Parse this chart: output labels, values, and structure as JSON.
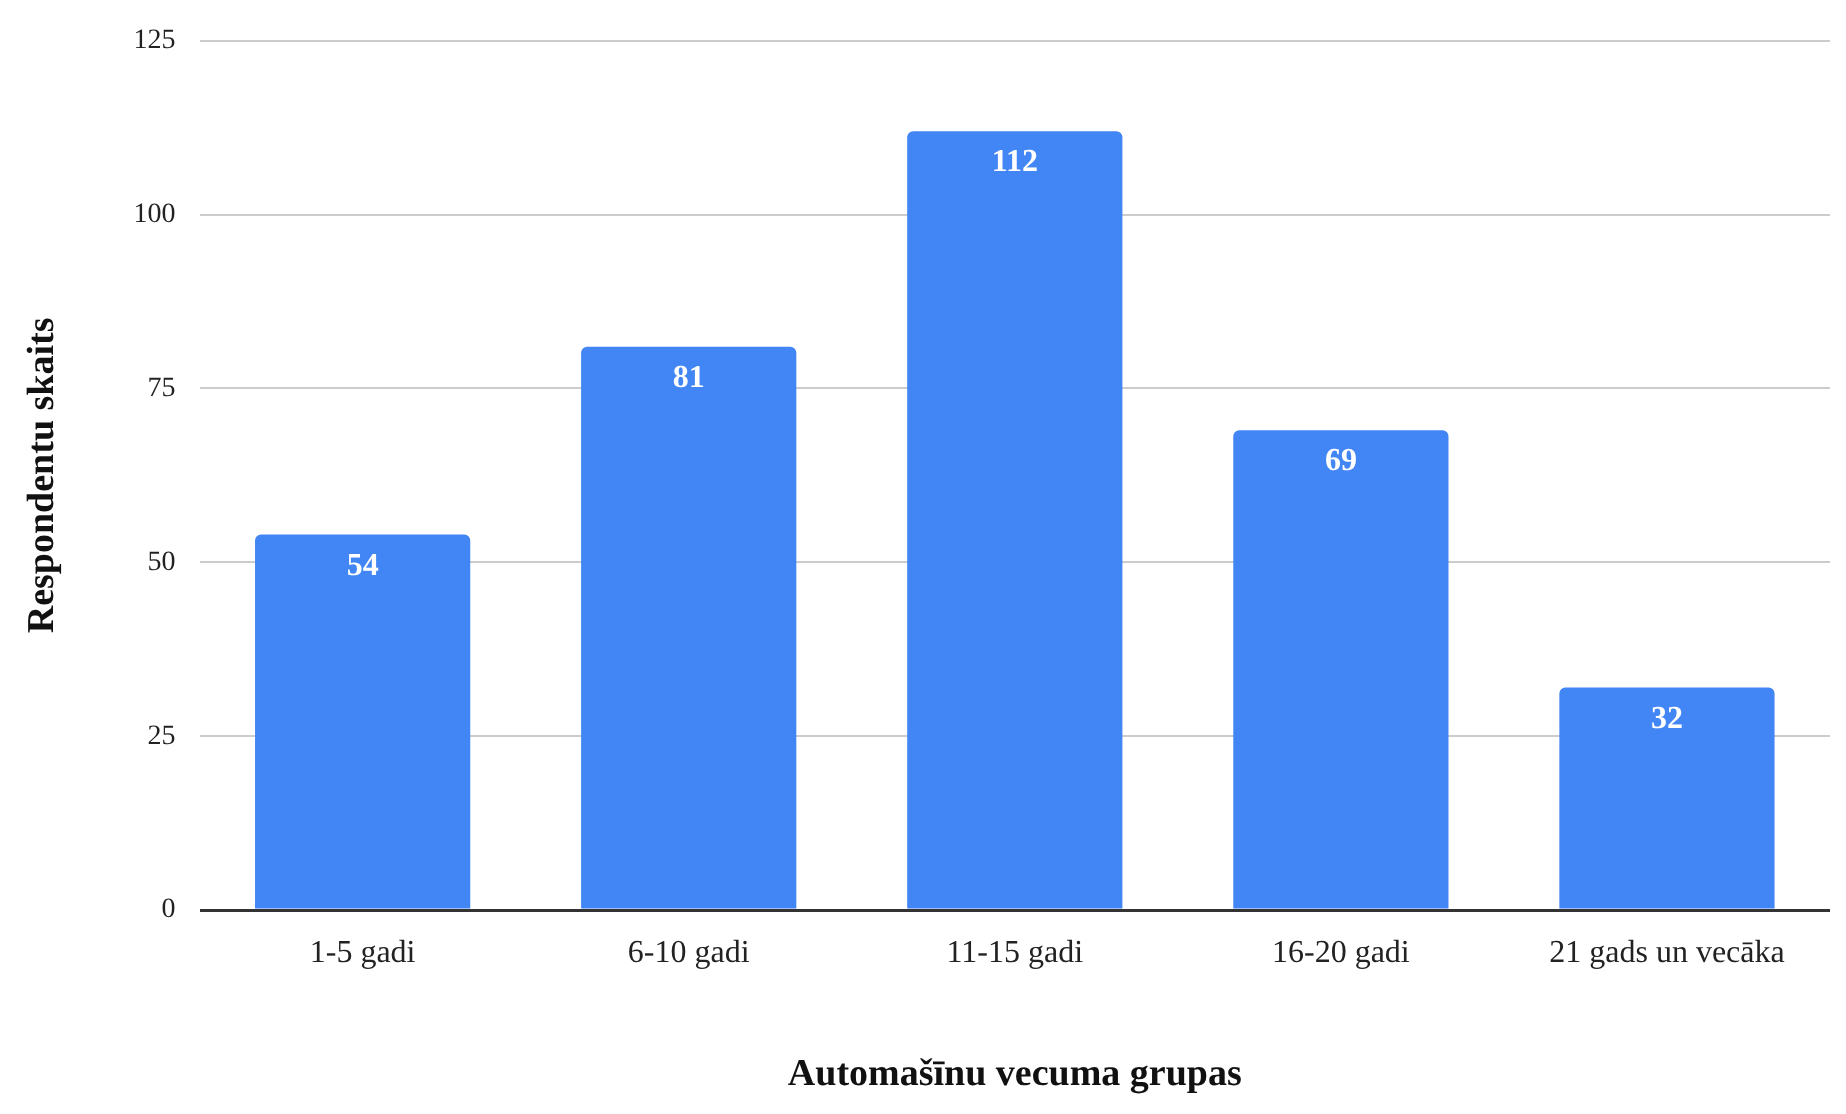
{
  "chart_data": {
    "type": "bar",
    "xlabel": "Automašīnu vecuma grupas",
    "ylabel": "Respondentu skaits",
    "categories": [
      "1-5 gadi",
      "6-10 gadi",
      "11-15 gadi",
      "16-20 gadi",
      "21 gads un vecāka"
    ],
    "values": [
      54,
      81,
      112,
      69,
      32
    ],
    "color": "#4285f4",
    "ylim": [
      0,
      125
    ],
    "yticks": [
      0,
      25,
      50,
      75,
      100,
      125
    ],
    "grid": "y",
    "data_labels": true,
    "legend": false
  }
}
